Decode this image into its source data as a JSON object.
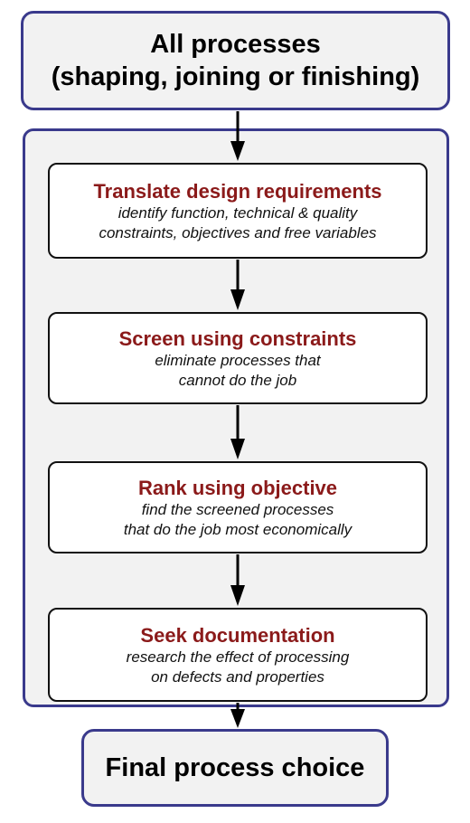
{
  "start": {
    "line1": "All processes",
    "line2": "(shaping, joining or finishing)"
  },
  "steps": [
    {
      "title": "Translate design requirements",
      "desc": [
        "identify function, technical & quality",
        "constraints, objectives and free variables"
      ]
    },
    {
      "title": "Screen using constraints",
      "desc": [
        "eliminate processes that",
        "cannot do the job"
      ]
    },
    {
      "title": "Rank using objective",
      "desc": [
        "find the screened processes",
        "that do the job most economically"
      ]
    },
    {
      "title": "Seek documentation",
      "desc": [
        "research the effect of processing",
        "on defects and properties"
      ]
    }
  ],
  "end": {
    "label": "Final process choice"
  },
  "colors": {
    "frame": "#3a3a8c",
    "step_title": "#8b1a1a",
    "panel_fill": "#f2f2f2"
  }
}
